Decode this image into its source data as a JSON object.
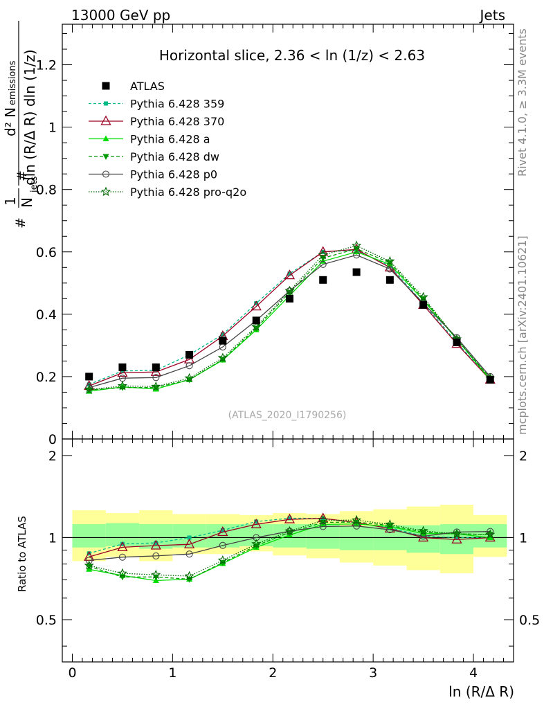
{
  "header": {
    "left": "13000 GeV pp",
    "right": "Jets"
  },
  "side": {
    "rivet": "Rivet 4.1.0, ≥ 3.3M events",
    "mcplots": "mcplots.cern.ch [arXiv:2401.10621]"
  },
  "chart_data": {
    "type": "line",
    "title": "Horizontal slice, 2.36 < ln (1/z) < 2.63",
    "watermark": "(ATLAS_2020_I1790256)",
    "xlabel": "ln (R/Δ R)",
    "ylabel_lines": [
      "d² N",
      "emissions",
      "1",
      "N",
      "jets",
      "dln (R/Δ R) dln (1/z)",
      "#",
      "#"
    ],
    "ratio_ylabel": "Ratio to ATLAS",
    "xlim": [
      -0.1,
      4.4
    ],
    "ylim_main": [
      0,
      1.33
    ],
    "ylim_ratio": [
      0.35,
      2.3
    ],
    "x_ticks": [
      0,
      1,
      2,
      3,
      4
    ],
    "x_tick_labels": [
      "0",
      "1",
      "2",
      "3",
      "4"
    ],
    "y_ticks_main": [
      0,
      0.2,
      0.4,
      0.6,
      0.8,
      1,
      1.2
    ],
    "y_tick_labels_main": [
      "0",
      "0.2",
      "0.4",
      "0.6",
      "0.8",
      "1",
      "1.2"
    ],
    "y_ticks_ratio": [
      0.5,
      1,
      2
    ],
    "y_tick_labels_ratio": [
      "0.5",
      "1",
      "2"
    ],
    "bin_edges": [
      0,
      0.334,
      0.667,
      1.0,
      1.334,
      1.667,
      2.0,
      2.334,
      2.667,
      3.0,
      3.334,
      3.667,
      4.0,
      4.334
    ],
    "x": [
      0.167,
      0.5,
      0.834,
      1.167,
      1.5,
      1.834,
      2.167,
      2.5,
      2.834,
      3.167,
      3.5,
      3.834,
      4.167
    ],
    "atlas": [
      0.2,
      0.23,
      0.23,
      0.27,
      0.315,
      0.38,
      0.45,
      0.51,
      0.535,
      0.51,
      0.43,
      0.31,
      0.19
    ],
    "band_inner": [
      [
        0.92,
        1.12
      ],
      [
        0.93,
        1.13
      ],
      [
        0.91,
        1.12
      ],
      [
        0.92,
        1.12
      ],
      [
        0.92,
        1.12
      ],
      [
        0.93,
        1.12
      ],
      [
        0.92,
        1.12
      ],
      [
        0.91,
        1.12
      ],
      [
        0.9,
        1.1
      ],
      [
        0.9,
        1.11
      ],
      [
        0.88,
        1.11
      ],
      [
        0.87,
        1.12
      ],
      [
        0.92,
        1.12
      ]
    ],
    "band_outer": [
      [
        0.82,
        1.26
      ],
      [
        0.85,
        1.23
      ],
      [
        0.82,
        1.26
      ],
      [
        0.87,
        1.22
      ],
      [
        0.87,
        1.22
      ],
      [
        0.89,
        1.21
      ],
      [
        0.86,
        1.23
      ],
      [
        0.84,
        1.22
      ],
      [
        0.81,
        1.25
      ],
      [
        0.79,
        1.27
      ],
      [
        0.76,
        1.3
      ],
      [
        0.74,
        1.32
      ],
      [
        0.85,
        1.21
      ]
    ],
    "series": [
      {
        "name": "ATLAS",
        "color": "#000000",
        "marker": "square"
      },
      {
        "name": "Pythia 6.428 359",
        "color": "#00bb88",
        "dash": "4,3",
        "marker": "smallsquare",
        "values": [
          0.175,
          0.218,
          0.22,
          0.27,
          0.335,
          0.435,
          0.53,
          0.6,
          0.605,
          0.555,
          0.435,
          0.31,
          0.19
        ]
      },
      {
        "name": "Pythia 6.428 370",
        "color": "#990022",
        "dash": "",
        "marker": "triangle",
        "values": [
          0.17,
          0.212,
          0.215,
          0.255,
          0.33,
          0.425,
          0.525,
          0.6,
          0.608,
          0.55,
          0.43,
          0.305,
          0.19
        ]
      },
      {
        "name": "Pythia 6.428 a",
        "color": "#00dd00",
        "dash": "",
        "marker": "filltriangle",
        "values": [
          0.153,
          0.167,
          0.16,
          0.19,
          0.253,
          0.35,
          0.46,
          0.57,
          0.6,
          0.56,
          0.445,
          0.32,
          0.19
        ]
      },
      {
        "name": "Pythia 6.428 dw",
        "color": "#009900",
        "dash": "5,3",
        "marker": "invtriangle",
        "values": [
          0.157,
          0.165,
          0.165,
          0.19,
          0.255,
          0.355,
          0.47,
          0.58,
          0.61,
          0.565,
          0.45,
          0.32,
          0.195
        ]
      },
      {
        "name": "Pythia 6.428 p0",
        "color": "#444444",
        "dash": "",
        "marker": "circle",
        "values": [
          0.165,
          0.195,
          0.197,
          0.235,
          0.295,
          0.38,
          0.475,
          0.56,
          0.59,
          0.545,
          0.435,
          0.325,
          0.2
        ]
      },
      {
        "name": "Pythia 6.428 pro-q2o",
        "color": "#006600",
        "dash": "1.5,2",
        "marker": "star",
        "values": [
          0.158,
          0.17,
          0.168,
          0.195,
          0.26,
          0.36,
          0.475,
          0.59,
          0.62,
          0.57,
          0.455,
          0.32,
          0.195
        ]
      }
    ]
  }
}
